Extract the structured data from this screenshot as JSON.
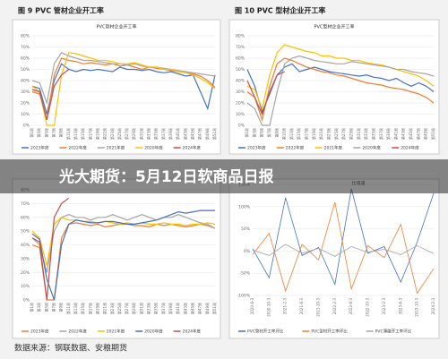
{
  "headline": "光大期货：5月12日软商品日报",
  "source": "数据来源：钢联数据、安粮期货",
  "chart_data": [
    {
      "type": "line",
      "caption": "图 9   PVC 管材企业开工率",
      "title": "PVC管材企业开工率",
      "categories": [
        "第1周",
        "第3周",
        "第5周",
        "第7周",
        "第9周",
        "第11周",
        "第13周",
        "第15周",
        "第17周",
        "第19周",
        "第21周",
        "第23周",
        "第25周",
        "第27周",
        "第29周",
        "第31周",
        "第33周",
        "第35周",
        "第37周",
        "第39周",
        "第41周",
        "第43周",
        "第45周",
        "第47周",
        "第49周",
        "第51周"
      ],
      "ylim": [
        0,
        80
      ],
      "yticks": [
        {
          "value": 0,
          "label": "0%"
        },
        {
          "value": 10,
          "label": "10%"
        },
        {
          "value": 20,
          "label": "20%"
        },
        {
          "value": 30,
          "label": "30%"
        },
        {
          "value": 40,
          "label": "40%"
        },
        {
          "value": 50,
          "label": "50%"
        },
        {
          "value": 60,
          "label": "60%"
        },
        {
          "value": 70,
          "label": "70%"
        },
        {
          "value": 80,
          "label": "80%"
        }
      ],
      "series": [
        {
          "name": "2023年度",
          "color": "#4472c4",
          "values": [
            35,
            33,
            10,
            40,
            55,
            50,
            48,
            50,
            49,
            50,
            49,
            48,
            52,
            50,
            50,
            49,
            50,
            48,
            47,
            48,
            46,
            44,
            45,
            30,
            15,
            45
          ]
        },
        {
          "name": "2022年度",
          "color": "#ed7d31",
          "values": [
            30,
            28,
            5,
            45,
            60,
            58,
            57,
            55,
            56,
            55,
            54,
            55,
            53,
            54,
            52,
            50,
            52,
            51,
            50,
            49,
            48,
            47,
            46,
            44,
            40,
            34
          ]
        },
        {
          "name": "2021年度",
          "color": "#a5a5a5",
          "values": [
            40,
            38,
            20,
            55,
            65,
            62,
            60,
            58,
            58,
            57,
            56,
            55,
            55,
            54,
            55,
            53,
            52,
            52,
            51,
            50,
            49,
            48,
            47,
            46,
            45,
            44
          ]
        },
        {
          "name": "2020年度",
          "color": "#ffc000",
          "values": [
            35,
            30,
            0,
            0,
            45,
            65,
            64,
            62,
            60,
            58,
            58,
            57,
            55,
            55,
            56,
            54,
            52,
            52,
            50,
            50,
            48,
            47,
            45,
            42,
            38,
            33
          ]
        },
        {
          "name": "2024年度",
          "color": "#c0504d",
          "values": [
            32,
            30,
            5,
            35,
            45,
            50,
            null,
            null,
            null,
            null,
            null,
            null,
            null,
            null,
            null,
            null,
            null,
            null,
            null,
            null,
            null,
            null,
            null,
            null,
            null,
            null
          ]
        }
      ]
    },
    {
      "type": "line",
      "caption": "图 10   PVC 型材企业开工率",
      "title": "PVC型材企业开工率",
      "categories": [
        "第1周",
        "第3周",
        "第5周",
        "第7周",
        "第9周",
        "第11周",
        "第13周",
        "第15周",
        "第17周",
        "第19周",
        "第21周",
        "第23周",
        "第25周",
        "第27周",
        "第29周",
        "第31周",
        "第33周",
        "第35周",
        "第37周",
        "第39周",
        "第41周",
        "第43周",
        "第45周",
        "第47周",
        "第49周",
        "第51周"
      ],
      "ylim": [
        0,
        80
      ],
      "yticks": [
        {
          "value": 0,
          "label": "0%"
        },
        {
          "value": 10,
          "label": "10%"
        },
        {
          "value": 20,
          "label": "20%"
        },
        {
          "value": 30,
          "label": "30%"
        },
        {
          "value": 40,
          "label": "40%"
        },
        {
          "value": 50,
          "label": "50%"
        },
        {
          "value": 60,
          "label": "60%"
        },
        {
          "value": 70,
          "label": "70%"
        },
        {
          "value": 80,
          "label": "80%"
        }
      ],
      "series": [
        {
          "name": "2023年度",
          "color": "#4472c4",
          "values": [
            50,
            35,
            12,
            28,
            45,
            52,
            55,
            48,
            50,
            52,
            50,
            48,
            47,
            46,
            45,
            44,
            45,
            43,
            42,
            40,
            42,
            38,
            35,
            38,
            35,
            30
          ]
        },
        {
          "name": "2022年度",
          "color": "#ed7d31",
          "values": [
            30,
            25,
            5,
            35,
            55,
            60,
            58,
            55,
            52,
            50,
            48,
            47,
            45,
            44,
            42,
            40,
            38,
            37,
            36,
            34,
            33,
            32,
            30,
            28,
            25,
            20
          ]
        },
        {
          "name": "2021年度",
          "color": "#ffc000",
          "values": [
            35,
            32,
            15,
            45,
            65,
            72,
            70,
            68,
            66,
            65,
            62,
            62,
            60,
            60,
            58,
            58,
            56,
            55,
            54,
            52,
            50,
            48,
            46,
            44,
            40,
            35
          ]
        },
        {
          "name": "2020年度",
          "color": "#a5a5a5",
          "values": [
            20,
            15,
            0,
            0,
            30,
            55,
            60,
            62,
            60,
            58,
            57,
            56,
            55,
            55,
            57,
            56,
            55,
            54,
            53,
            52,
            50,
            50,
            48,
            47,
            46,
            44
          ]
        },
        {
          "name": "2024年度",
          "color": "#c0504d",
          "values": [
            40,
            25,
            10,
            30,
            45,
            48,
            null,
            null,
            null,
            null,
            null,
            null,
            null,
            null,
            null,
            null,
            null,
            null,
            null,
            null,
            null,
            null,
            null,
            null,
            null,
            null
          ]
        }
      ]
    },
    {
      "type": "line",
      "categories": [
        "第1周",
        "第3周",
        "第5周",
        "第7周",
        "第9周",
        "第11周",
        "第13周",
        "第15周",
        "第17周",
        "第19周",
        "第21周",
        "第23周",
        "第25周",
        "第27周",
        "第29周",
        "第31周",
        "第33周",
        "第35周",
        "第37周",
        "第39周",
        "第41周",
        "第43周",
        "第45周",
        "第47周",
        "第49周",
        "第51周"
      ],
      "ylim": [
        0,
        80
      ],
      "yticks": [
        {
          "value": 0,
          "label": "0%"
        },
        {
          "value": 10,
          "label": "10%"
        },
        {
          "value": 20,
          "label": "20%"
        },
        {
          "value": 30,
          "label": "30%"
        },
        {
          "value": 40,
          "label": "40%"
        },
        {
          "value": 50,
          "label": "50%"
        },
        {
          "value": 60,
          "label": "60%"
        },
        {
          "value": 70,
          "label": "70%"
        },
        {
          "value": 80,
          "label": "80%"
        }
      ],
      "series": [
        {
          "name": "2023年度",
          "color": "#ed7d31",
          "values": [
            40,
            38,
            0,
            0,
            45,
            55,
            56,
            55,
            54,
            55,
            53,
            54,
            55,
            55,
            54,
            54,
            53,
            55,
            54,
            55,
            54,
            53,
            54,
            55,
            54,
            52
          ]
        },
        {
          "name": "2022年度",
          "color": "#a5a5a5",
          "values": [
            45,
            40,
            20,
            50,
            60,
            62,
            60,
            60,
            58,
            60,
            60,
            62,
            60,
            58,
            60,
            62,
            60,
            58,
            60,
            60,
            62,
            60,
            58,
            56,
            55,
            52
          ]
        },
        {
          "name": "2021年度",
          "color": "#ffc000",
          "values": [
            50,
            45,
            25,
            55,
            60,
            58,
            58,
            57,
            57,
            56,
            57,
            56,
            55,
            56,
            55,
            56,
            55,
            55,
            56,
            55,
            55,
            54,
            55,
            55,
            56,
            55
          ]
        },
        {
          "name": "2020年度",
          "color": "#4472c4",
          "values": [
            48,
            44,
            15,
            0,
            40,
            55,
            58,
            57,
            56,
            56,
            57,
            57,
            56,
            55,
            55,
            56,
            57,
            58,
            60,
            62,
            64,
            63,
            64,
            65,
            65,
            65
          ]
        },
        {
          "name": "2024年度",
          "color": "#c0504d",
          "values": [
            45,
            42,
            0,
            60,
            70,
            74,
            null,
            null,
            null,
            null,
            null,
            null,
            null,
            null,
            null,
            null,
            null,
            null,
            null,
            null,
            null,
            null,
            null,
            null,
            null,
            null
          ]
        }
      ]
    },
    {
      "type": "line",
      "title": "比增速",
      "categories": [
        "2020-6-3",
        "2020-10-3",
        "2021-2-3",
        "2021-6-3",
        "2021-10-3",
        "2022-2-3",
        "2022-6-3",
        "2022-10-3",
        "2023-2-3",
        "2023-6-3",
        "2023-10-3",
        "2024-2-3"
      ],
      "ylim": [
        -100,
        150
      ],
      "yticks": [
        {
          "value": -100,
          "label": "-100%"
        },
        {
          "value": -50,
          "label": "-50%"
        },
        {
          "value": 0,
          "label": "0%"
        },
        {
          "value": 50,
          "label": "50%"
        },
        {
          "value": 100,
          "label": "100%"
        },
        {
          "value": 150,
          "label": "150%"
        }
      ],
      "series": [
        {
          "name": "PVC管材开工率环比",
          "color": "#4472c4",
          "values": [
            5,
            -60,
            120,
            -10,
            8,
            -75,
            140,
            -5,
            10,
            -70,
            20,
            130
          ]
        },
        {
          "name": "PVC型材开工率环比",
          "color": "#ed7d31",
          "values": [
            -8,
            40,
            -90,
            15,
            -20,
            110,
            -85,
            12,
            -15,
            60,
            -95,
            -40
          ]
        },
        {
          "name": "PVC薄膜开工率环比",
          "color": "#a5a5a5",
          "values": [
            2,
            -10,
            15,
            -5,
            6,
            -12,
            10,
            -3,
            4,
            -8,
            12,
            -6
          ]
        }
      ]
    }
  ]
}
